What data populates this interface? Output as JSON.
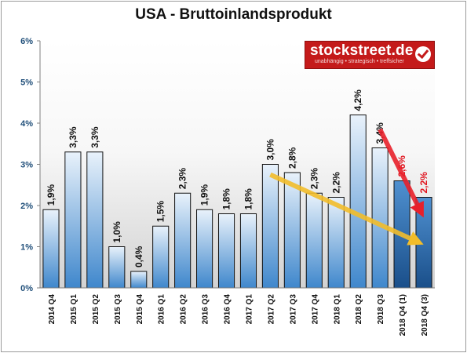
{
  "chart_data": {
    "type": "bar",
    "title": "USA - Bruttoinlandsprodukt",
    "categories": [
      "2014 Q4",
      "2015 Q1",
      "2015 Q2",
      "2015 Q3",
      "2015 Q4",
      "2016 Q1",
      "2016 Q2",
      "2016 Q3",
      "2016 Q4",
      "2017 Q1",
      "2017 Q2",
      "2017 Q3",
      "2017 Q4",
      "2018 Q1",
      "2018 Q2",
      "2018 Q3",
      "2018 Q4 (1)",
      "2018 Q4 (3)"
    ],
    "values": [
      1.9,
      3.3,
      3.3,
      1.0,
      0.4,
      1.5,
      2.3,
      1.9,
      1.8,
      1.8,
      3.0,
      2.8,
      2.3,
      2.2,
      4.2,
      3.4,
      2.6,
      2.2
    ],
    "data_labels": [
      "1,9%",
      "3,3%",
      "3,3%",
      "1,0%",
      "0,4%",
      "1,5%",
      "2,3%",
      "1,9%",
      "1,8%",
      "1,8%",
      "3,0%",
      "2,8%",
      "2,3%",
      "2,2%",
      "4,2%",
      "3,4%",
      "2,6%",
      "2,2%"
    ],
    "highlighted": [
      false,
      false,
      false,
      false,
      false,
      false,
      false,
      false,
      false,
      false,
      false,
      false,
      false,
      false,
      false,
      false,
      true,
      true
    ],
    "ylim": [
      0,
      6
    ],
    "yticks": [
      0,
      1,
      2,
      3,
      4,
      5,
      6
    ],
    "ytick_labels": [
      "0%",
      "1%",
      "2%",
      "3%",
      "4%",
      "5%",
      "6%"
    ],
    "xlabel": "",
    "ylabel": "",
    "grid": false,
    "colors": {
      "bar_top": "#e9f2fb",
      "bar_bottom": "#3f87cc",
      "bar_hl_top": "#4f90d0",
      "bar_hl_bottom": "#1a4f8a",
      "label_normal": "#111111",
      "label_highlight": "#e0141e",
      "yellow_arrow": "#f2bd2a",
      "red_arrow": "#e8202a",
      "tick_label": "#1f4e79"
    },
    "annotations": [
      {
        "type": "trend-arrow",
        "color": "yellow",
        "from": {
          "category": "2017 Q2",
          "value": 2.75
        },
        "to": {
          "category": "2018 Q4 (3)",
          "value": 1.05
        }
      },
      {
        "type": "trend-arrow",
        "color": "red",
        "from": {
          "category": "2018 Q3",
          "value": 3.85
        },
        "to": {
          "category": "2018 Q4 (3)",
          "value": 1.7
        }
      }
    ]
  },
  "logo": {
    "name": "stockstreet.de",
    "tagline": "unabhängig • strategisch • treffsicher"
  }
}
